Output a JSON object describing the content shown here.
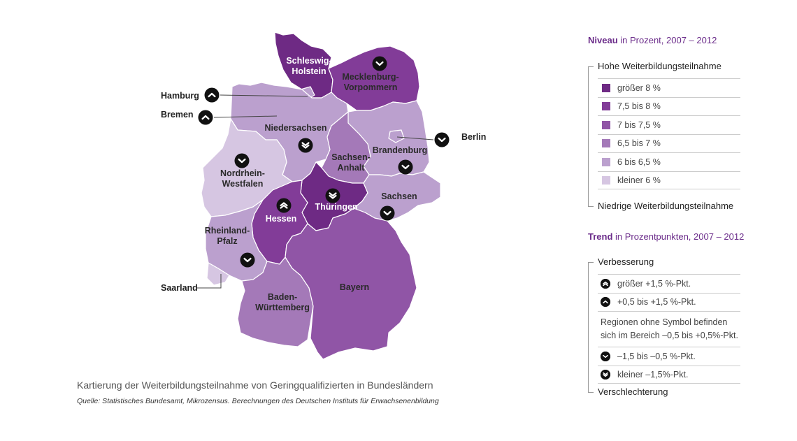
{
  "colors": {
    "gt8": "#6e2a84",
    "r75_8": "#823c98",
    "r7_75": "#9055a6",
    "r65_7": "#a479b8",
    "r6_65": "#bba0ce",
    "lt6": "#d6c6e2",
    "accent": "#6b2c8a"
  },
  "map": {
    "states": [
      {
        "name": "Schleswig-Holstein",
        "level": "gt8",
        "label": [
          "Schleswig-",
          "Holstein"
        ],
        "trend": "none"
      },
      {
        "name": "Mecklenburg-Vorpommern",
        "level": "r75_8",
        "label": [
          "Mecklenburg-",
          "Vorpommern"
        ],
        "trend": "down"
      },
      {
        "name": "Hamburg",
        "level": "r6_65",
        "label": [
          "Hamburg"
        ],
        "trend": "up"
      },
      {
        "name": "Bremen",
        "level": "r6_65",
        "label": [
          "Bremen"
        ],
        "trend": "up"
      },
      {
        "name": "Niedersachsen",
        "level": "r6_65",
        "label": [
          "Niedersachsen"
        ],
        "trend": "double-down"
      },
      {
        "name": "Berlin",
        "level": "r6_65",
        "label": [
          "Berlin"
        ],
        "trend": "down"
      },
      {
        "name": "Brandenburg",
        "level": "r6_65",
        "label": [
          "Brandenburg"
        ],
        "trend": "down"
      },
      {
        "name": "Sachsen-Anhalt",
        "level": "r65_7",
        "label": [
          "Sachsen-",
          "Anhalt"
        ],
        "trend": "none"
      },
      {
        "name": "Nordrhein-Westfalen",
        "level": "lt6",
        "label": [
          "Nordrhein-",
          "Westfalen"
        ],
        "trend": "down"
      },
      {
        "name": "Thüringen",
        "level": "gt8",
        "label": [
          "Thüringen"
        ],
        "trend": "double-down"
      },
      {
        "name": "Sachsen",
        "level": "r6_65",
        "label": [
          "Sachsen"
        ],
        "trend": "down"
      },
      {
        "name": "Hessen",
        "level": "r75_8",
        "label": [
          "Hessen"
        ],
        "trend": "double-up"
      },
      {
        "name": "Rheinland-Pfalz",
        "level": "r6_65",
        "label": [
          "Rheinland-",
          "Pfalz"
        ],
        "trend": "down"
      },
      {
        "name": "Saarland",
        "level": "lt6",
        "label": [
          "Saarland"
        ],
        "trend": "none"
      },
      {
        "name": "Baden-Württemberg",
        "level": "r65_7",
        "label": [
          "Baden-",
          "Württemberg"
        ],
        "trend": "none"
      },
      {
        "name": "Bayern",
        "level": "r7_75",
        "label": [
          "Bayern"
        ],
        "trend": "none"
      }
    ]
  },
  "caption": "Kartierung der Weiterbildungsteilnahme von Geringqualifizierten in Bundesländern",
  "source": "Quelle: Statistisches Bundesamt, Mikrozensus. Berechnungen des Deutschen Instituts für Erwachsenenbildung",
  "legend_level": {
    "title_bold": "Niveau",
    "title_rest": " in Prozent, 2007 – 2012",
    "top": "Hohe Weiterbildungsteilnahme",
    "bottom": "Niedrige Weiterbildungsteilnahme",
    "items": [
      {
        "label": "größer 8 %",
        "color": "#6e2a84"
      },
      {
        "label": "7,5 bis 8 %",
        "color": "#823c98"
      },
      {
        "label": "7 bis 7,5 %",
        "color": "#9055a6"
      },
      {
        "label": "6,5 bis 7 %",
        "color": "#a479b8"
      },
      {
        "label": "6 bis 6,5 %",
        "color": "#bba0ce"
      },
      {
        "label": "kleiner 6 %",
        "color": "#d6c6e2"
      }
    ]
  },
  "legend_trend": {
    "title_bold": "Trend",
    "title_rest": " in Prozentpunkten, 2007 – 2012",
    "top": "Verbesserung",
    "bottom": "Verschlechterung",
    "items": [
      {
        "icon": "double-chevron-up-icon",
        "label": "größer +1,5 %-Pkt."
      },
      {
        "icon": "chevron-up-icon",
        "label": "+0,5 bis +1,5 %-Pkt."
      }
    ],
    "note": "Regionen ohne Symbol befinden sich im Bereich –0,5 bis +0,5%-Pkt.",
    "items_down": [
      {
        "icon": "chevron-down-icon",
        "label": "–1,5 bis –0,5 %-Pkt."
      },
      {
        "icon": "double-chevron-down-icon",
        "label": "kleiner –1,5%-Pkt."
      }
    ]
  }
}
